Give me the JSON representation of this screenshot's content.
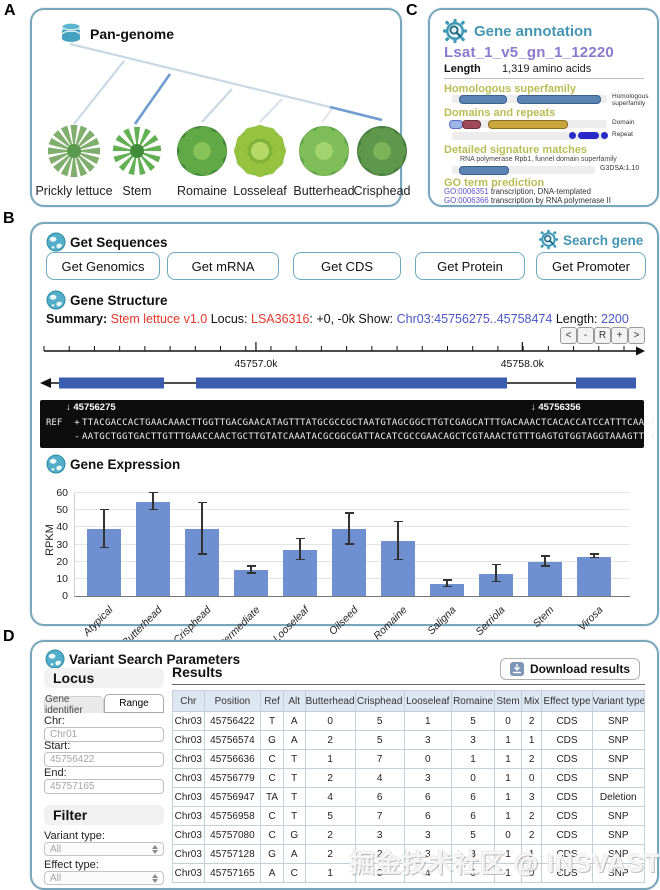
{
  "panel_labels": {
    "a": "A",
    "b": "B",
    "c": "C",
    "d": "D"
  },
  "colors": {
    "panel_border": "#78a7bb",
    "teal_title": "#4596b4",
    "olive_header": "#b9bd55",
    "purple_gene_id": "#8a7ad0",
    "red_text": "#e3372a",
    "link_blue": "#4b55c8",
    "exon_blue": "#3a5db0",
    "bar_blue": "#6e8fd0",
    "table_header_bg": "#dce7f1",
    "domain_gold": "#c9a63c",
    "domain_maroon": "#9e4a5a",
    "domain_lightblue": "#9db4e8",
    "repeat_navy": "#2a2ac8",
    "superfamily_blue": "#5b84b5"
  },
  "icons": {
    "pan_genome": "database-icon",
    "section": "globe-icon",
    "search": "gear-magnifier-icon",
    "download": "download-icon",
    "stepper": "up-down-stepper-icon",
    "marker": "down-arrow-icon"
  },
  "pan_genome": {
    "title": "Pan-genome",
    "varieties": [
      "Prickly lettuce",
      "Stem",
      "Romaine",
      "Losseleaf",
      "Butterhead",
      "Crisphead"
    ]
  },
  "gene_annotation": {
    "title": "Gene annotation",
    "gene_id": "Lsat_1_v5_gn_1_12220",
    "length_label": "Length",
    "length_value": "1,319 amino acids",
    "section_homologous": "Homologous superfamily",
    "section_domains": "Domains and repeats",
    "section_signature": "Detailed signature matches",
    "section_go": "GO term prediction",
    "track_label_homologous": "Homologous\nsuperfamily",
    "track_label_domain": "Domain",
    "track_label_repeat": "Repeat",
    "track_label_signature": "G3DSA:1.10",
    "signature_text": "RNA polymerase Rpb1, funnel domain superfamily",
    "go_terms": [
      {
        "id": "GO:0006351",
        "desc": "transcription, DNA-templated"
      },
      {
        "id": "GO:0006366",
        "desc": "transcription by RNA polymerase II"
      }
    ]
  },
  "get_sequences": {
    "title": "Get Sequences",
    "search_gene_label": "Search gene",
    "buttons": [
      "Get Genomics",
      "Get mRNA",
      "Get CDS",
      "Get Protein",
      "Get Promoter"
    ]
  },
  "gene_structure": {
    "title": "Gene Structure",
    "summary_label": "Summary:",
    "assembly": "Stem lettuce v1.0",
    "locus_label": "Locus:",
    "locus": "LSA36316",
    "offsets": ": +0, -0k",
    "show_label": "Show:",
    "region": "Chr03:45756275..45758474",
    "length_label": "Length:",
    "length": "2200",
    "nav_buttons": [
      "<",
      "-",
      "R",
      "+",
      ">"
    ],
    "ruler_labels": [
      "45757.0k",
      "45758.0k"
    ],
    "marker_positions": [
      "45756275",
      "45756356"
    ],
    "ref_label": "REF",
    "plus_strand": "+",
    "minus_strand": "-",
    "seq_plus": "TTACGACCACTGAACAAACTTGGTTGACGAACATAGTTTATGCGCCGCTAATGTAGCGGCTTGTCGAGCATTTGACAAACTCACACCATCCATTTCAAAT",
    "seq_minus": "AATGCTGGTGACTTGTTTGAACCAACTGCTTGTATCAAATACGCGGCGATTACATCGCCGAACAGCTCGTAAACTGTTTGAGTGTGGTAGGTAAAGTTTA"
  },
  "chart_data": {
    "type": "bar",
    "title": "Gene Expression",
    "xlabel": "",
    "ylabel": "RPKM",
    "ylim": [
      0,
      60
    ],
    "yticks": [
      0,
      10,
      20,
      30,
      40,
      50,
      60
    ],
    "grid": true,
    "legend_position": "none",
    "categories": [
      "Atypical",
      "Butterhead",
      "Crisphead",
      "Intermediate",
      "Looseleaf",
      "Oilseed",
      "Romaine",
      "Saligna",
      "Serriola",
      "Stem",
      "Virosa"
    ],
    "values": [
      39,
      55,
      39,
      15,
      27,
      39,
      32,
      7,
      13,
      20,
      23
    ],
    "errors": [
      11,
      5,
      15,
      2,
      6,
      9,
      11,
      2,
      5,
      3,
      1
    ],
    "bar_color": "#6e8fd0"
  },
  "variant_search": {
    "title": "Variant Search Parameters",
    "locus_header": "Locus",
    "tabs": [
      "Gene identifier",
      "Range"
    ],
    "active_tab": "Range",
    "fields": [
      {
        "label": "Chr:",
        "value": "Chr01"
      },
      {
        "label": "Start:",
        "value": "45756422"
      },
      {
        "label": "End:",
        "value": "45757165"
      }
    ],
    "filter_header": "Filter",
    "filters": [
      {
        "label": "Variant type:",
        "value": "All"
      },
      {
        "label": "Effect type:",
        "value": "All"
      }
    ],
    "results_header": "Results",
    "download_label": "Download results",
    "table": {
      "columns": [
        "Chr",
        "Position",
        "Ref",
        "Alt",
        "Butterhead",
        "Crisphead",
        "Looseleaf",
        "Romaine",
        "Stem",
        "Mix",
        "Effect type",
        "Variant type"
      ],
      "col_widths_pct": [
        6.7,
        12,
        4.8,
        4.6,
        10.6,
        10.4,
        10,
        9.2,
        5.6,
        4.4,
        10.6,
        11.1
      ],
      "rows": [
        [
          "Chr03",
          "45756422",
          "T",
          "A",
          "0",
          "5",
          "1",
          "5",
          "0",
          "2",
          "CDS",
          "SNP"
        ],
        [
          "Chr03",
          "45756574",
          "G",
          "A",
          "2",
          "5",
          "3",
          "3",
          "1",
          "1",
          "CDS",
          "SNP"
        ],
        [
          "Chr03",
          "45756636",
          "C",
          "T",
          "1",
          "7",
          "0",
          "1",
          "1",
          "2",
          "CDS",
          "SNP"
        ],
        [
          "Chr03",
          "45756779",
          "C",
          "T",
          "2",
          "4",
          "3",
          "0",
          "1",
          "0",
          "CDS",
          "SNP"
        ],
        [
          "Chr03",
          "45756947",
          "TA",
          "T",
          "4",
          "6",
          "6",
          "6",
          "1",
          "3",
          "CDS",
          "Deletion"
        ],
        [
          "Chr03",
          "45756958",
          "C",
          "T",
          "5",
          "7",
          "6",
          "6",
          "1",
          "2",
          "CDS",
          "SNP"
        ],
        [
          "Chr03",
          "45757080",
          "C",
          "G",
          "2",
          "3",
          "3",
          "5",
          "0",
          "2",
          "CDS",
          "SNP"
        ],
        [
          "Chr03",
          "45757128",
          "G",
          "A",
          "2",
          "2",
          "3",
          "3",
          "1",
          "1",
          "CDS",
          "SNP"
        ],
        [
          "Chr03",
          "45757165",
          "A",
          "C",
          "1",
          "0",
          "4",
          "0",
          "1",
          "0",
          "CDS",
          "SNP"
        ]
      ]
    }
  },
  "watermark": "掘金技术社区 @ INSVAST"
}
